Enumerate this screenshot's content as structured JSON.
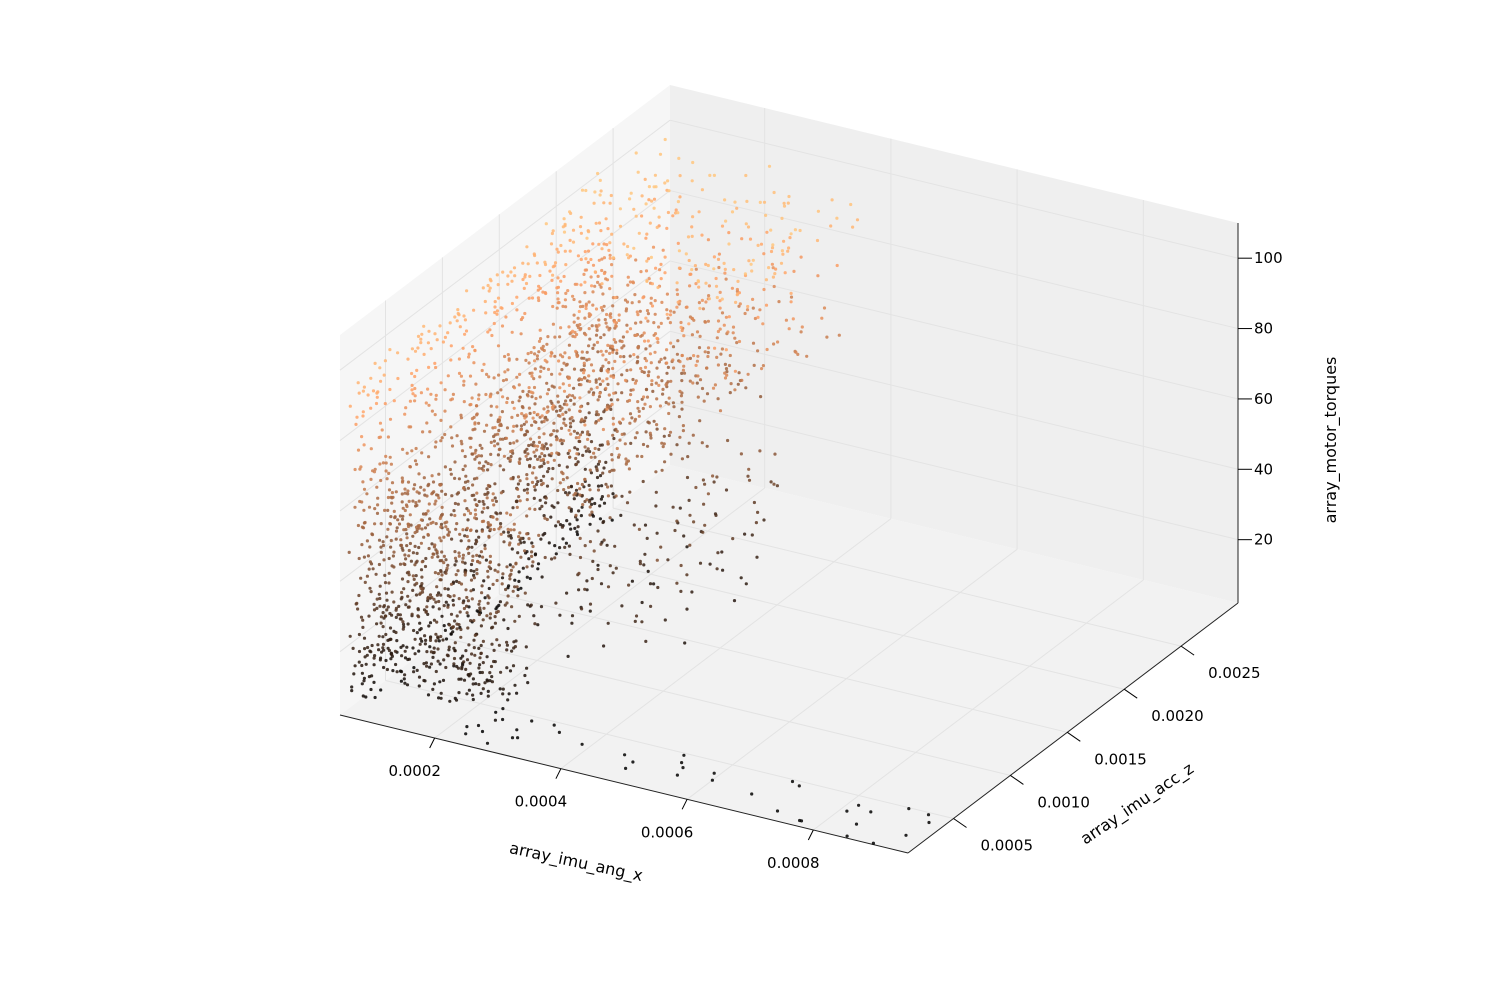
{
  "chart_data": {
    "type": "scatter",
    "projection": "3d",
    "xlabel": "array_imu_ang_x",
    "ylabel": "array_imu_acc_z",
    "zlabel": "array_motor_torques",
    "xlim": [
      5e-05,
      0.00095
    ],
    "ylim": [
      0.0001,
      0.003
    ],
    "zlim": [
      2,
      110
    ],
    "x_ticks": [
      {
        "value": 0.0002,
        "label": "0.0002"
      },
      {
        "value": 0.0004,
        "label": "0.0004"
      },
      {
        "value": 0.0006,
        "label": "0.0006"
      },
      {
        "value": 0.0008,
        "label": "0.0008"
      }
    ],
    "y_ticks": [
      {
        "value": 0.0005,
        "label": "0.0005"
      },
      {
        "value": 0.001,
        "label": "0.0010"
      },
      {
        "value": 0.0015,
        "label": "0.0015"
      },
      {
        "value": 0.002,
        "label": "0.0020"
      },
      {
        "value": 0.0025,
        "label": "0.0025"
      }
    ],
    "z_ticks": [
      {
        "value": 20,
        "label": "20"
      },
      {
        "value": 40,
        "label": "40"
      },
      {
        "value": 60,
        "label": "60"
      },
      {
        "value": 80,
        "label": "80"
      },
      {
        "value": 100,
        "label": "100"
      }
    ],
    "grid": true,
    "colormap": "copper",
    "color_by": "array_motor_torques",
    "pane_colors": {
      "floor": "#f2f2f2",
      "back": "#efefef",
      "side": "#f6f6f6"
    },
    "clusters": [
      {
        "x": [
          6e-05,
          8e-05
        ],
        "y": [
          0.00012,
          0.0024
        ],
        "z": [
          3,
          98
        ],
        "count": 900
      },
      {
        "x": [
          6e-05,
          0.00028
        ],
        "y": [
          0.00015,
          0.0006
        ],
        "z": [
          8,
          62
        ],
        "count": 600
      },
      {
        "x": [
          8e-05,
          0.00042
        ],
        "y": [
          0.0015,
          0.0027
        ],
        "z": [
          66,
          108
        ],
        "count": 350
      },
      {
        "x": [
          8e-05,
          0.00032
        ],
        "y": [
          0.0008,
          0.0024
        ],
        "z": [
          48,
          78
        ],
        "count": 650
      },
      {
        "x": [
          8e-05,
          0.00042
        ],
        "y": [
          0.0008,
          0.0021
        ],
        "z": [
          10,
          48
        ],
        "count": 220
      },
      {
        "x": [
          0.0002,
          0.00094
        ],
        "y": [
          0.0001,
          0.00045
        ],
        "z": [
          2,
          4
        ],
        "count": 40
      }
    ]
  }
}
